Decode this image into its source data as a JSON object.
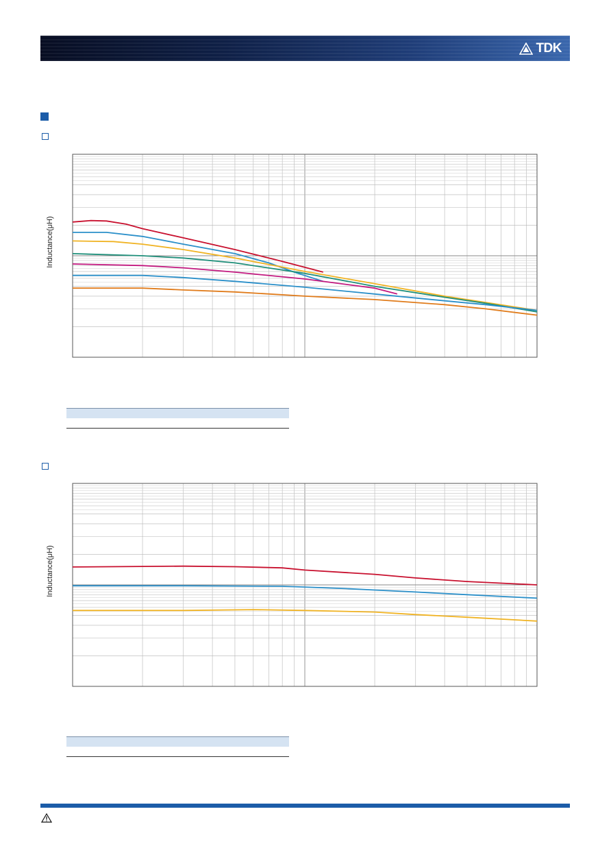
{
  "header": {
    "brand": "TDK",
    "logo_icon": "tdk-triangle-logo-icon"
  },
  "icons": {
    "section_marker": "filled-square-icon",
    "subsection_marker": "outline-square-icon",
    "warning": "warning-triangle-icon"
  },
  "chart_data": [
    {
      "type": "line",
      "ylabel": "Inductance(μH)",
      "y_scale": "log",
      "x_scale": "log",
      "x_range": [
        0.1,
        10
      ],
      "y_range": [
        1,
        100
      ],
      "grid": true,
      "series": [
        {
          "color": "#c8102e",
          "points": [
            [
              0.1,
              21.5
            ],
            [
              0.12,
              22.2
            ],
            [
              0.14,
              22.0
            ],
            [
              0.17,
              20.5
            ],
            [
              0.2,
              18.5
            ],
            [
              0.3,
              15.0
            ],
            [
              0.5,
              11.5
            ],
            [
              0.8,
              8.8
            ],
            [
              1.2,
              6.9
            ]
          ]
        },
        {
          "color": "#2a8fc9",
          "points": [
            [
              0.1,
              17.0
            ],
            [
              0.14,
              17.0
            ],
            [
              0.2,
              15.5
            ],
            [
              0.3,
              13.0
            ],
            [
              0.5,
              10.5
            ],
            [
              0.7,
              8.5
            ],
            [
              0.9,
              6.9
            ],
            [
              1.2,
              5.6
            ]
          ]
        },
        {
          "color": "#f0b323",
          "points": [
            [
              0.1,
              14.0
            ],
            [
              0.15,
              13.8
            ],
            [
              0.2,
              13.0
            ],
            [
              0.3,
              11.5
            ],
            [
              0.5,
              9.5
            ],
            [
              1,
              7.0
            ],
            [
              2,
              5.3
            ],
            [
              4,
              4.0
            ],
            [
              10,
              2.9
            ]
          ]
        },
        {
          "color": "#1f8f7a",
          "points": [
            [
              0.1,
              10.5
            ],
            [
              0.2,
              10.0
            ],
            [
              0.3,
              9.5
            ],
            [
              0.5,
              8.5
            ],
            [
              1,
              6.7
            ],
            [
              2,
              5.0
            ],
            [
              4,
              3.9
            ],
            [
              6,
              3.4
            ],
            [
              10,
              2.8
            ]
          ]
        },
        {
          "color": "#c2187f",
          "points": [
            [
              0.1,
              8.3
            ],
            [
              0.2,
              8.0
            ],
            [
              0.3,
              7.6
            ],
            [
              0.5,
              6.9
            ],
            [
              1,
              5.9
            ],
            [
              2,
              4.8
            ],
            [
              2.5,
              4.2
            ]
          ]
        },
        {
          "color": "#2a8fc9",
          "points": [
            [
              0.1,
              6.4
            ],
            [
              0.2,
              6.4
            ],
            [
              0.3,
              6.1
            ],
            [
              0.5,
              5.6
            ],
            [
              1,
              4.9
            ],
            [
              2,
              4.2
            ],
            [
              4,
              3.6
            ],
            [
              6,
              3.3
            ],
            [
              10,
              2.9
            ]
          ]
        },
        {
          "color": "#e07b1a",
          "points": [
            [
              0.1,
              4.8
            ],
            [
              0.2,
              4.8
            ],
            [
              0.3,
              4.6
            ],
            [
              0.5,
              4.4
            ],
            [
              1,
              4.0
            ],
            [
              2,
              3.7
            ],
            [
              4,
              3.3
            ],
            [
              6,
              3.0
            ],
            [
              10,
              2.6
            ]
          ]
        }
      ]
    },
    {
      "type": "line",
      "ylabel": "Inductance(μH)",
      "y_scale": "log",
      "x_scale": "log",
      "x_range": [
        0.1,
        10
      ],
      "y_range": [
        1,
        100
      ],
      "grid": true,
      "series": [
        {
          "color": "#c8102e",
          "points": [
            [
              0.1,
              15.0
            ],
            [
              0.2,
              15.2
            ],
            [
              0.3,
              15.3
            ],
            [
              0.5,
              15.1
            ],
            [
              0.8,
              14.7
            ],
            [
              1,
              14.0
            ],
            [
              2,
              12.7
            ],
            [
              3,
              11.7
            ],
            [
              5,
              10.8
            ],
            [
              10,
              10.0
            ]
          ]
        },
        {
          "color": "#2a8fc9",
          "points": [
            [
              0.1,
              9.8
            ],
            [
              0.3,
              9.8
            ],
            [
              0.8,
              9.7
            ],
            [
              1.5,
              9.2
            ],
            [
              2,
              8.9
            ],
            [
              3,
              8.5
            ],
            [
              5,
              8.0
            ],
            [
              10,
              7.4
            ]
          ]
        },
        {
          "color": "#f0b323",
          "points": [
            [
              0.1,
              5.6
            ],
            [
              0.3,
              5.6
            ],
            [
              0.6,
              5.7
            ],
            [
              1,
              5.6
            ],
            [
              2,
              5.4
            ],
            [
              3,
              5.1
            ],
            [
              5,
              4.8
            ],
            [
              10,
              4.4
            ]
          ]
        }
      ]
    }
  ]
}
